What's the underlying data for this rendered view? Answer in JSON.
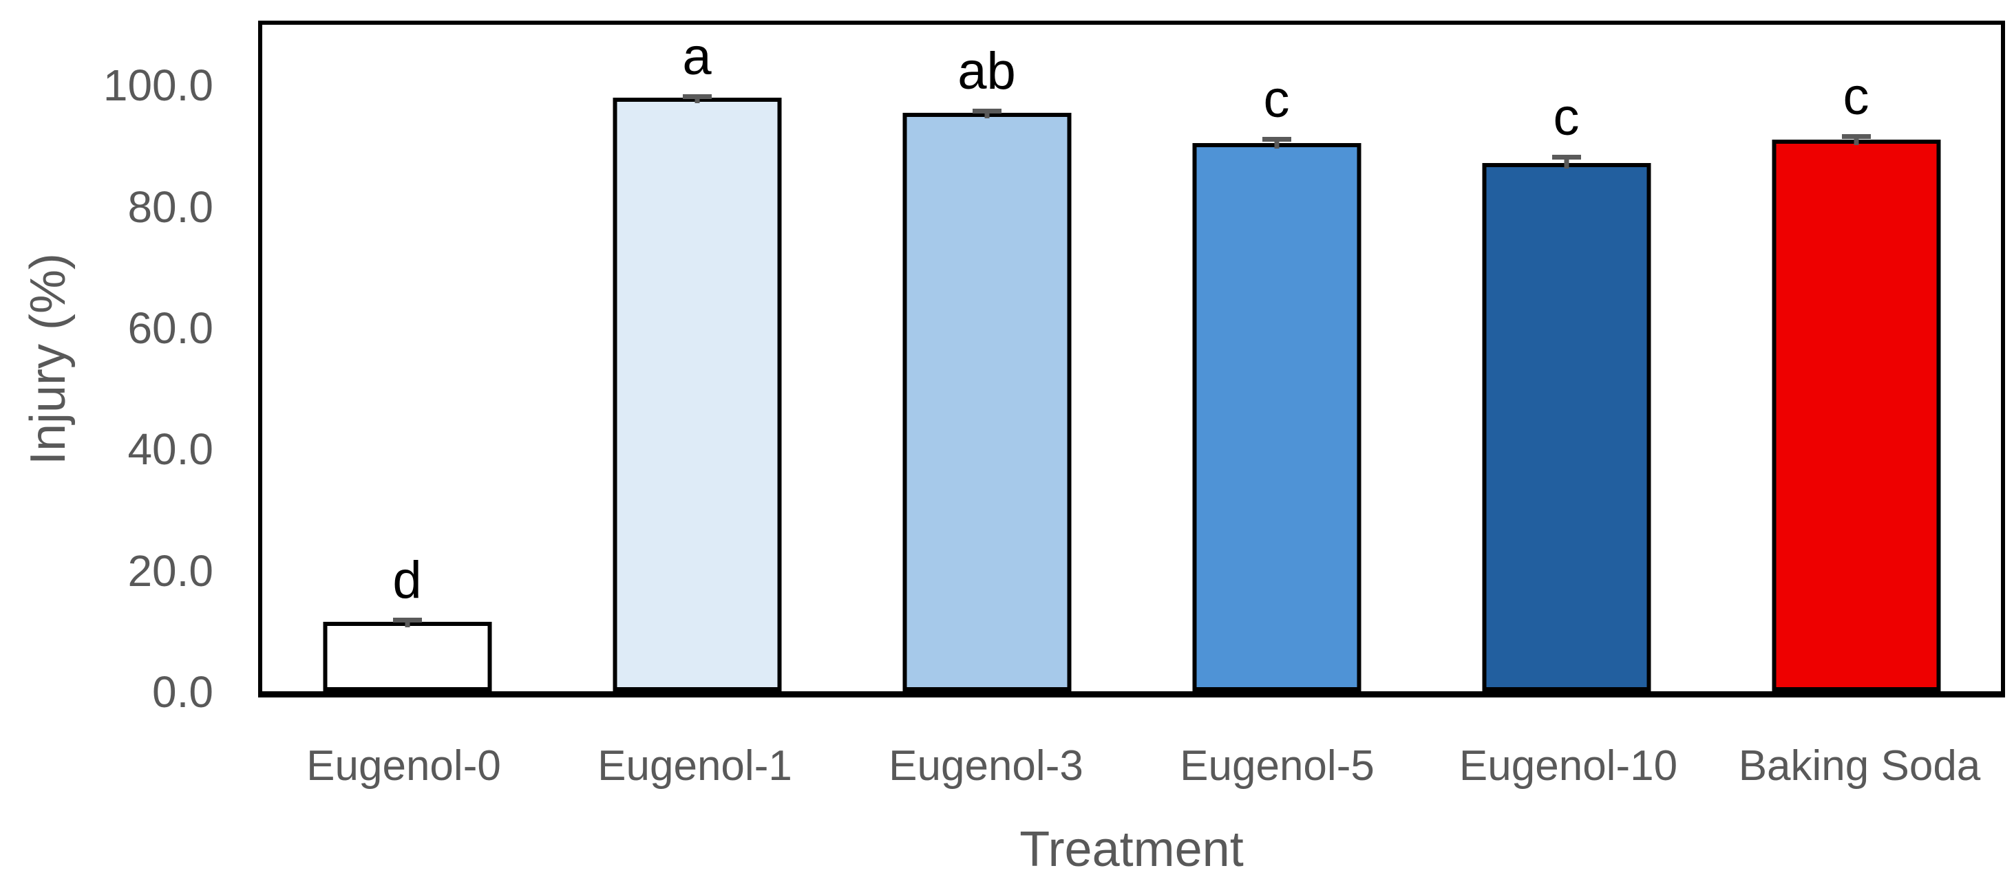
{
  "figure": {
    "background": "#FFFFFF",
    "frame_color": "#000000",
    "axis_text_color": "#595959",
    "error_bar_color": "#5A5A5A"
  },
  "chart_data": {
    "type": "bar",
    "title": "",
    "xlabel": "Treatment",
    "ylabel": "Injury (%)",
    "categories": [
      "Eugenol-0",
      "Eugenol-1",
      "Eugenol-3",
      "Eugenol-5",
      "Eugenol-10",
      "Baking Soda"
    ],
    "values": [
      11.5,
      98.0,
      95.5,
      90.5,
      87.2,
      91.0
    ],
    "error_plus": [
      0.7,
      0.5,
      0.7,
      1.0,
      1.3,
      0.9
    ],
    "sig_letters": [
      "d",
      "a",
      "ab",
      "c",
      "c",
      "c"
    ],
    "bar_colors": [
      "#FFFFFF",
      "#DEEBF7",
      "#A6C9EA",
      "#4F93D6",
      "#225F9F",
      "#EE0000"
    ],
    "bar_border_color": "#000000",
    "ytick_values": [
      0,
      20,
      40,
      60,
      80,
      100
    ],
    "ytick_labels": [
      "0.0",
      "20.0",
      "40.0",
      "60.0",
      "80.0",
      "100.0"
    ],
    "ylim": [
      0,
      110
    ],
    "grid": false,
    "legend": false
  }
}
